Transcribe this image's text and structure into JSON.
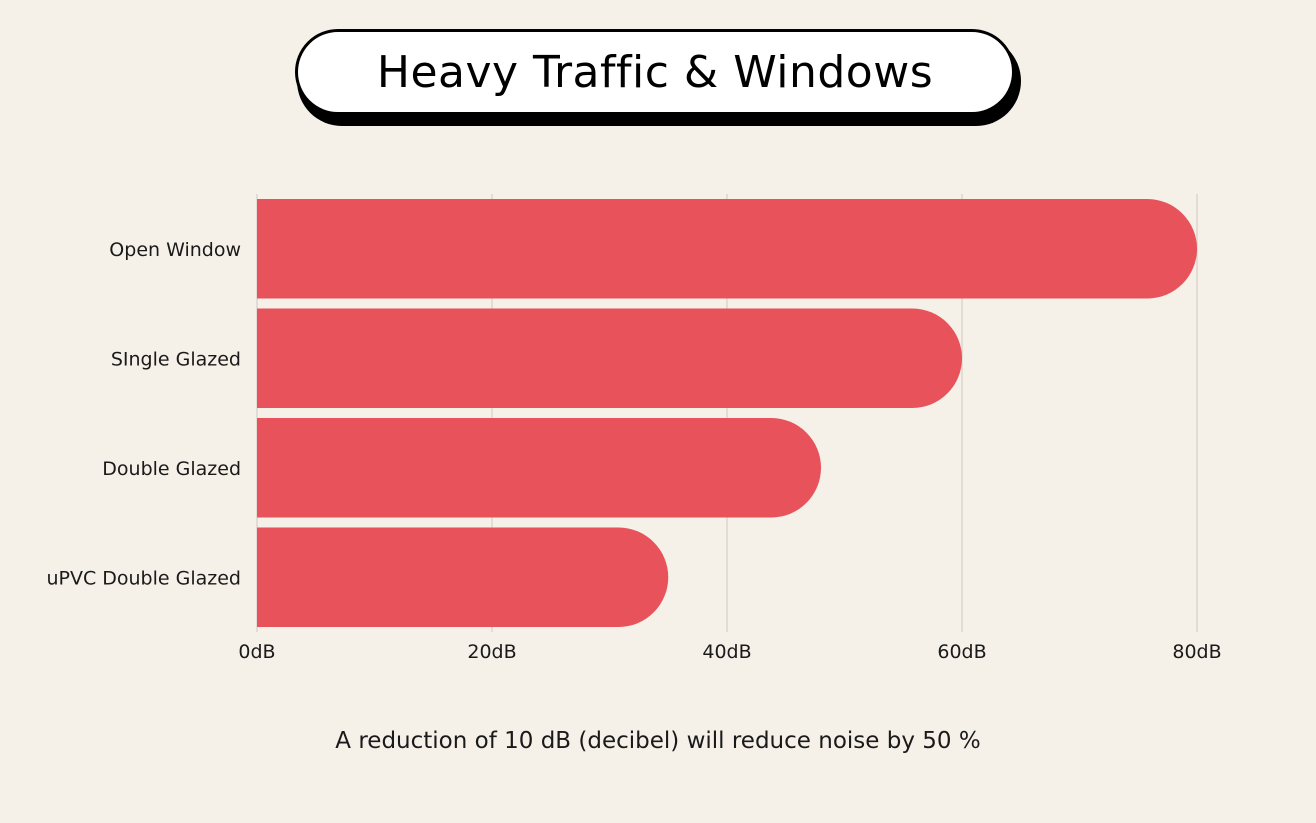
{
  "chart_data": {
    "type": "bar",
    "orientation": "horizontal",
    "title": "Heavy Traffic & Windows",
    "categories": [
      "Open Window",
      "SIngle Glazed",
      "Double Glazed",
      "uPVC Double Glazed"
    ],
    "values": [
      80,
      60,
      48,
      35
    ],
    "unit": "dB",
    "xlim": [
      0,
      80
    ],
    "xticks": [
      "0dB",
      "20dB",
      "40dB",
      "60dB",
      "80dB"
    ],
    "xlabel": "",
    "ylabel": "",
    "grid": true,
    "bar_color": "#e8525a",
    "footnote": "A reduction of 10 dB (decibel) will reduce noise by 50 %"
  },
  "colors": {
    "background": "#f5f0e8",
    "grid": "#cfc8c0",
    "bar": "#e8525a"
  }
}
